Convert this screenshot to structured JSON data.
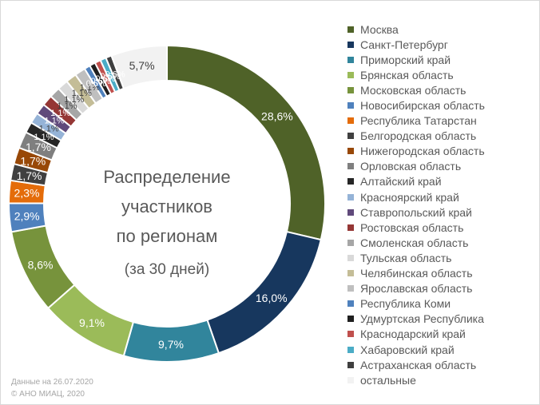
{
  "chart_data": {
    "type": "donut",
    "title_lines": [
      "Распределение",
      "участников",
      "по регионам"
    ],
    "subtitle": "(за 30 дней)",
    "series": [
      {
        "name": "Москва",
        "value": 28.6,
        "label": "28,6%",
        "color": "#4f6228"
      },
      {
        "name": "Санкт-Петербург",
        "value": 16.0,
        "label": "16,0%",
        "color": "#17375e"
      },
      {
        "name": "Приморский край",
        "value": 9.7,
        "label": "9,7%",
        "color": "#31859c"
      },
      {
        "name": "Брянская область",
        "value": 9.1,
        "label": "9,1%",
        "color": "#9bbb59"
      },
      {
        "name": "Московская область",
        "value": 8.6,
        "label": "8,6%",
        "color": "#77933c"
      },
      {
        "name": "Новосибирская область",
        "value": 2.9,
        "label": "2,9%",
        "color": "#4f81bd"
      },
      {
        "name": "Республика Татарстан",
        "value": 2.3,
        "label": "2,3%",
        "color": "#e46c0a"
      },
      {
        "name": "Белгородская область",
        "value": 1.7,
        "label": "1,7%",
        "color": "#404040"
      },
      {
        "name": "Нижегородская область",
        "value": 1.7,
        "label": "1,7%",
        "color": "#984807"
      },
      {
        "name": "Орловская область",
        "value": 1.7,
        "label": "1,7%",
        "color": "#7f7f7f"
      },
      {
        "name": "Алтайский край",
        "value": 1.1,
        "label": "1,1%",
        "color": "#262626"
      },
      {
        "name": "Красноярский край",
        "value": 1.1,
        "label": "1,1%",
        "color": "#95b3d7"
      },
      {
        "name": "Ставропольский край",
        "value": 1.1,
        "label": "1,1%",
        "color": "#604a7b"
      },
      {
        "name": "Ростовская область",
        "value": 1.1,
        "label": "1,1%",
        "color": "#953735"
      },
      {
        "name": "Смоленская область",
        "value": 1.1,
        "label": "1,1%",
        "color": "#a6a6a6"
      },
      {
        "name": "Тульская область",
        "value": 1.1,
        "label": "1,1%",
        "color": "#d9d9d9"
      },
      {
        "name": "Челябинская область",
        "value": 1.1,
        "label": "1,1%",
        "color": "#c4bd97"
      },
      {
        "name": "Ярославская область",
        "value": 1.1,
        "label": "1,1%",
        "color": "#bfbfbf"
      },
      {
        "name": "Республика Коми",
        "value": 0.6,
        "label": "0,6%",
        "color": "#4f81bd"
      },
      {
        "name": "Удмуртская Республика",
        "value": 0.6,
        "label": "0,6%",
        "color": "#1f1f1f"
      },
      {
        "name": "Краснодарский край",
        "value": 0.6,
        "label": "0,6%",
        "color": "#c0504d"
      },
      {
        "name": "Хабаровский край",
        "value": 0.6,
        "label": "0,6%",
        "color": "#4bacc6"
      },
      {
        "name": "Астраханская область",
        "value": 0.6,
        "label": "0,6%",
        "color": "#3f3f3f"
      },
      {
        "name": "остальные",
        "value": 5.7,
        "label": "5,7%",
        "color": "#f2f2f2"
      }
    ]
  },
  "footnote": {
    "date": "Данные на 26.07.2020",
    "copyright": "© АНО МИАЦ, 2020"
  }
}
